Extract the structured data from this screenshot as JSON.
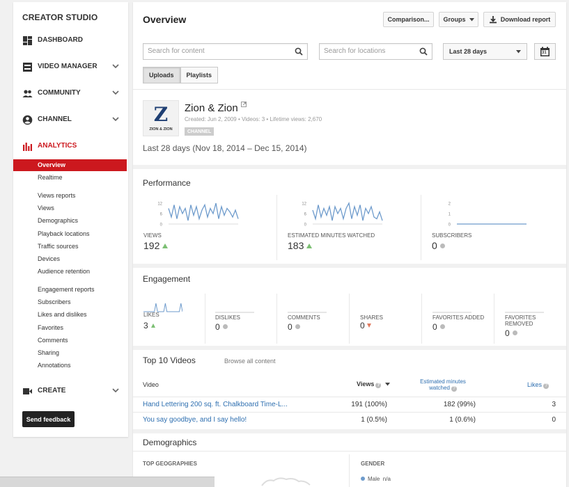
{
  "sidebar": {
    "title": "CREATOR STUDIO",
    "nav": [
      {
        "label": "DASHBOARD",
        "icon": "dashboard-icon"
      },
      {
        "label": "VIDEO MANAGER",
        "icon": "video-manager-icon"
      },
      {
        "label": "COMMUNITY",
        "icon": "community-icon"
      },
      {
        "label": "CHANNEL",
        "icon": "channel-icon"
      },
      {
        "label": "ANALYTICS",
        "icon": "analytics-icon"
      },
      {
        "label": "CREATE",
        "icon": "create-icon"
      }
    ],
    "analytics_items": [
      "Overview",
      "Realtime",
      "Views reports",
      "Views",
      "Demographics",
      "Playback locations",
      "Traffic sources",
      "Devices",
      "Audience retention",
      "Engagement reports",
      "Subscribers",
      "Likes and dislikes",
      "Favorites",
      "Comments",
      "Sharing",
      "Annotations"
    ],
    "feedback_label": "Send feedback"
  },
  "header": {
    "title": "Overview",
    "comparison_label": "Comparison...",
    "groups_label": "Groups",
    "download_label": "Download report",
    "calendar_day": "31"
  },
  "search": {
    "content_placeholder": "Search for content",
    "locations_placeholder": "Search for locations"
  },
  "date_select": {
    "value": "Last 28 days"
  },
  "tabs": [
    "Uploads",
    "Playlists"
  ],
  "channel": {
    "name": "Zion & Zion",
    "logo_letter": "Z",
    "logo_text": "ZION & ZION",
    "meta": "Created: Jun 2, 2009  •  Videos: 3  •  Lifetime views: 2,670",
    "badge": "CHANNEL",
    "date_range": "Last 28 days (Nov 18, 2014 – Dec 15, 2014)"
  },
  "performance": {
    "title": "Performance",
    "views": {
      "label": "VIEWS",
      "value": "192",
      "ticks": [
        "12",
        "6",
        "0"
      ],
      "series": [
        9,
        4,
        11,
        3,
        10,
        6,
        9,
        2,
        11,
        5,
        10,
        3,
        8,
        11,
        4,
        9,
        6,
        12,
        3,
        10,
        5,
        9,
        7,
        4,
        8,
        3
      ]
    },
    "minutes": {
      "label": "ESTIMATED MINUTES WATCHED",
      "value": "183",
      "ticks": [
        "12",
        "6",
        "0"
      ],
      "series": [
        8,
        3,
        11,
        4,
        9,
        5,
        10,
        2,
        10,
        6,
        9,
        3,
        9,
        12,
        3,
        10,
        5,
        11,
        2,
        9,
        6,
        10,
        4,
        3,
        7,
        2
      ]
    },
    "subscribers": {
      "label": "SUBSCRIBERS",
      "value": "0",
      "ticks": [
        "2",
        "1",
        "0"
      ],
      "series": [
        0,
        0,
        0,
        0,
        0,
        0,
        0,
        0,
        0,
        0,
        0,
        0,
        0,
        0,
        0,
        0,
        0,
        0,
        0,
        0,
        0,
        0,
        0,
        0,
        0,
        0
      ]
    }
  },
  "engagement": {
    "title": "Engagement",
    "items": [
      {
        "label": "LIKES",
        "value": "3",
        "trend": "up"
      },
      {
        "label": "DISLIKES",
        "value": "0",
        "trend": "flat"
      },
      {
        "label": "COMMENTS",
        "value": "0",
        "trend": "flat"
      },
      {
        "label": "SHARES",
        "value": "0",
        "trend": "down"
      },
      {
        "label": "FAVORITES ADDED",
        "value": "0",
        "trend": "flat"
      },
      {
        "label": "FAVORITES REMOVED",
        "value": "0",
        "trend": "flat"
      }
    ],
    "likes_series": [
      0,
      0,
      0,
      0,
      0,
      0,
      0,
      0,
      1,
      0,
      0,
      0,
      0,
      0,
      1,
      0,
      0,
      0,
      0,
      0,
      0,
      0,
      0,
      0,
      1,
      0
    ]
  },
  "top_videos": {
    "title": "Top 10 Videos",
    "browse_label": "Browse all content",
    "col_video": "Video",
    "col_views": "Views",
    "col_minutes_1": "Estimated minutes",
    "col_minutes_2": "watched",
    "col_likes": "Likes",
    "rows": [
      {
        "title": "Hand Lettering 200 sq. ft. Chalkboard Time-L...",
        "views": "191 (100%)",
        "minutes": "182 (99%)",
        "likes": "3"
      },
      {
        "title": "You say goodbye, and I say hello!",
        "views": "1 (0.5%)",
        "minutes": "1 (0.6%)",
        "likes": "0"
      }
    ]
  },
  "demographics": {
    "title": "Demographics",
    "geo_label": "TOP GEOGRAPHIES",
    "gender_label": "GENDER",
    "gender_item": "Male",
    "gender_value": "n/a"
  },
  "colors": {
    "accent": "#cc181e",
    "link": "#2e6fb0",
    "chart_line": "#6e9bcc",
    "trend_up": "#7cbf73"
  }
}
